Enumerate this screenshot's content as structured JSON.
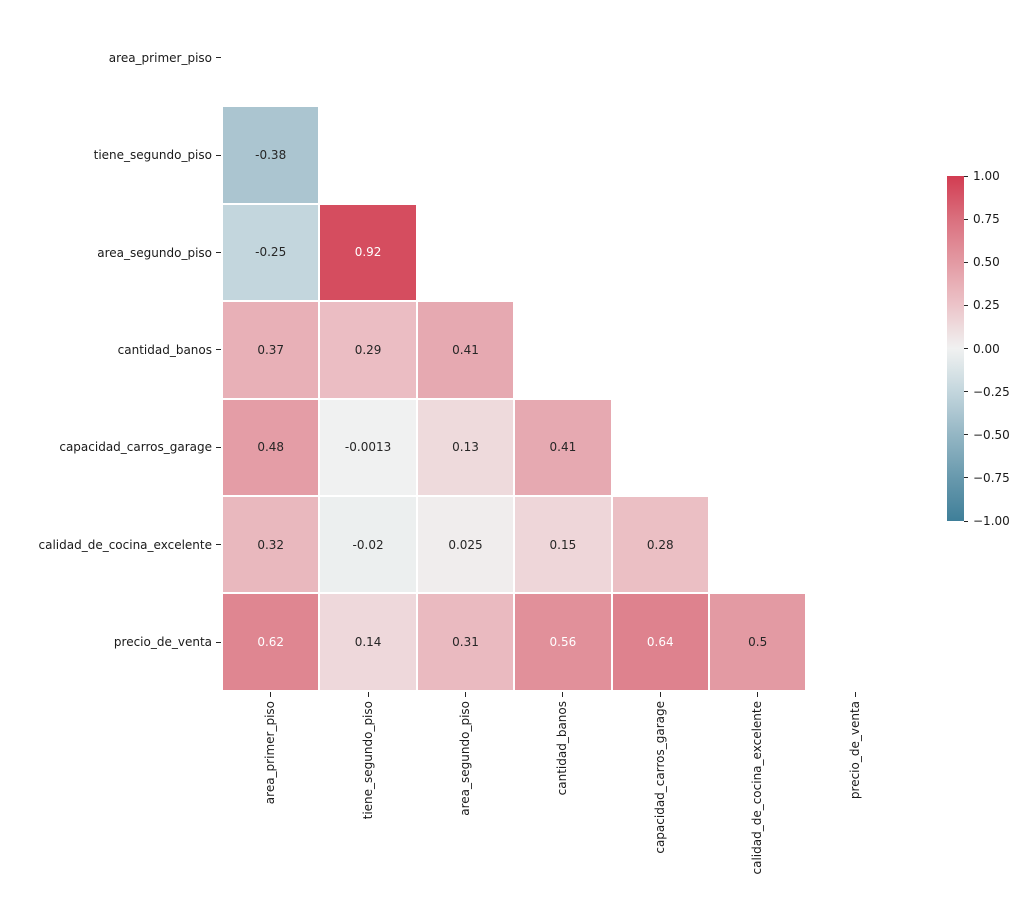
{
  "chart_data": {
    "type": "heatmap",
    "title": "",
    "description": "Lower-triangle correlation matrix heatmap (diagonal and upper triangle masked)",
    "variables": [
      "area_primer_piso",
      "tiene_segundo_piso",
      "area_segundo_piso",
      "cantidad_banos",
      "capacidad_carros_garage",
      "calidad_de_cocina_excelente",
      "precio_de_venta"
    ],
    "matrix": [
      [
        null,
        null,
        null,
        null,
        null,
        null,
        null
      ],
      [
        -0.38,
        null,
        null,
        null,
        null,
        null,
        null
      ],
      [
        -0.25,
        0.92,
        null,
        null,
        null,
        null,
        null
      ],
      [
        0.37,
        0.29,
        0.41,
        null,
        null,
        null,
        null
      ],
      [
        0.48,
        -0.0013,
        0.13,
        0.41,
        null,
        null,
        null
      ],
      [
        0.32,
        -0.02,
        0.025,
        0.15,
        0.28,
        null,
        null
      ],
      [
        0.62,
        0.14,
        0.31,
        0.56,
        0.64,
        0.5,
        null
      ]
    ],
    "cell_labels": [
      [
        "",
        "",
        "",
        "",
        "",
        "",
        ""
      ],
      [
        "-0.38",
        "",
        "",
        "",
        "",
        "",
        ""
      ],
      [
        "-0.25",
        "0.92",
        "",
        "",
        "",
        "",
        ""
      ],
      [
        "0.37",
        "0.29",
        "0.41",
        "",
        "",
        "",
        ""
      ],
      [
        "0.48",
        "-0.0013",
        "0.13",
        "0.41",
        "",
        "",
        ""
      ],
      [
        "0.32",
        "-0.02",
        "0.025",
        "0.15",
        "0.28",
        "",
        ""
      ],
      [
        "0.62",
        "0.14",
        "0.31",
        "0.56",
        "0.64",
        "0.5",
        ""
      ]
    ],
    "colorbar": {
      "min": -1,
      "max": 1,
      "tick_values": [
        1,
        0.75,
        0.5,
        0.25,
        0,
        -0.25,
        -0.5,
        -0.75,
        -1
      ],
      "tick_labels": [
        "1.00",
        "0.75",
        "0.50",
        "0.25",
        "0.00",
        "−0.25",
        "−0.50",
        "−0.75",
        "−1.00"
      ],
      "position": "right"
    },
    "colormap_anchors": [
      {
        "value": -1.0,
        "color": "#3f7f99"
      },
      {
        "value": -0.75,
        "color": "#6899ad"
      },
      {
        "value": -0.5,
        "color": "#94b6c4"
      },
      {
        "value": -0.25,
        "color": "#c3d6dd"
      },
      {
        "value": 0.0,
        "color": "#f0f1f1"
      },
      {
        "value": 0.25,
        "color": "#ecc4c9"
      },
      {
        "value": 0.5,
        "color": "#e39aa3"
      },
      {
        "value": 0.75,
        "color": "#da707e"
      },
      {
        "value": 1.0,
        "color": "#d23c51"
      }
    ],
    "annotation_colors": {
      "dark": "#262626",
      "light": "#ffffff"
    },
    "gridline_color": "#ffffff",
    "background_color": "#ffffff"
  }
}
